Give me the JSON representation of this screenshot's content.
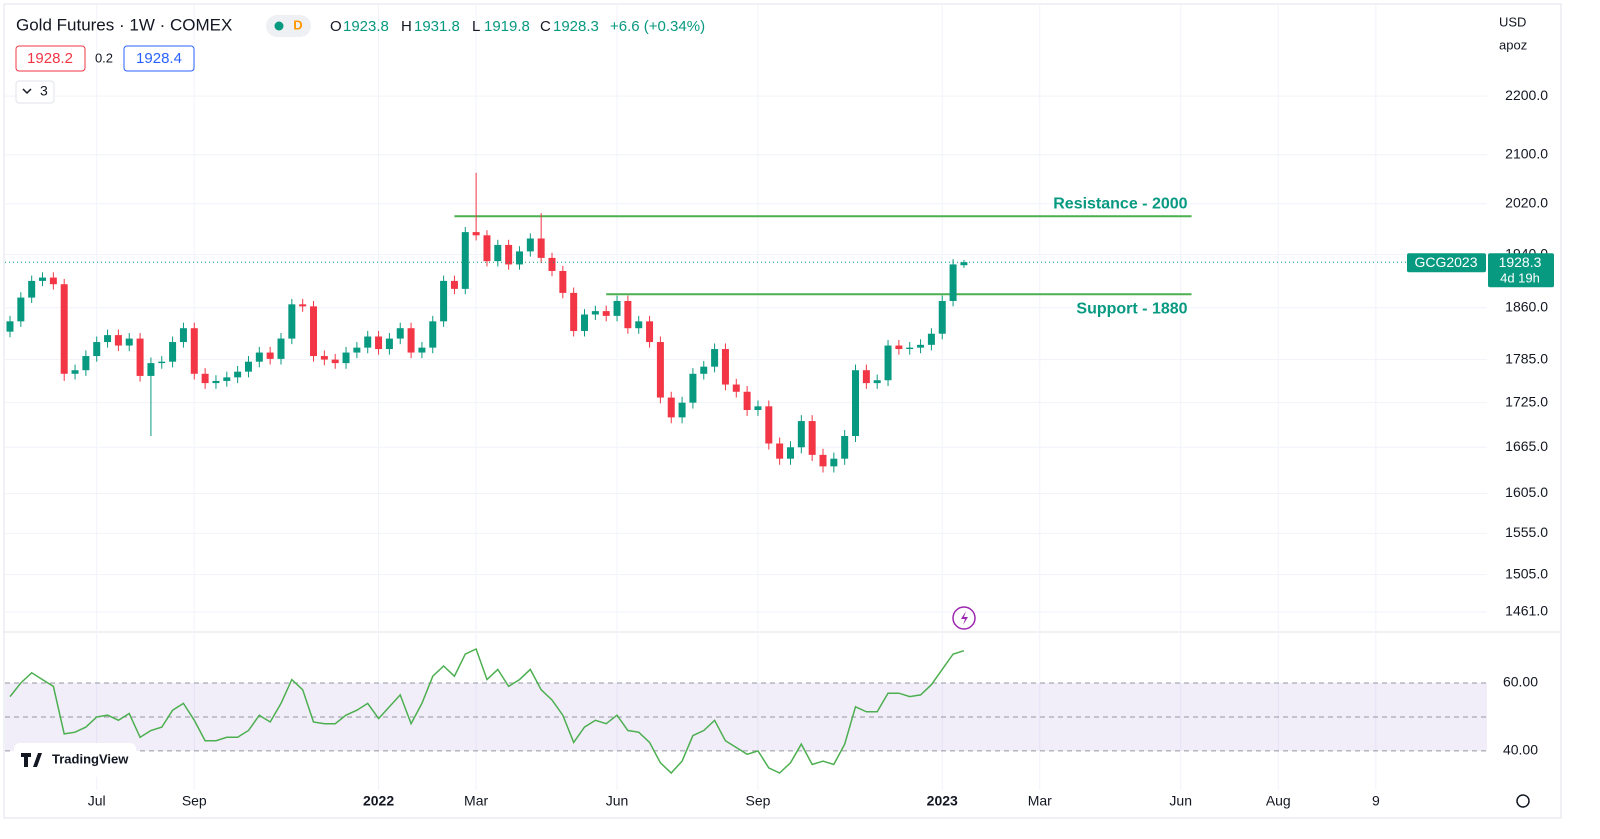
{
  "header": {
    "title": "Gold Futures · 1W · COMEX",
    "badge": "D",
    "open_label": "O",
    "high_label": "H",
    "low_label": "L",
    "close_label": "C",
    "change": "+6.6 (+0.34%)",
    "bid": "1928.2",
    "spread": "0.2",
    "ask": "1928.4",
    "collapse_count": "3",
    "currency": "USD",
    "unit": "apoz",
    "logo": "TradingView"
  },
  "chart_data": [
    {
      "type": "candlestick",
      "symbol": "GCG2023",
      "countdown": "4d 19h",
      "categories": [
        null,
        null,
        null,
        null,
        null,
        null,
        null,
        null,
        "Jul",
        null,
        null,
        null,
        null,
        null,
        null,
        null,
        null,
        "Sep",
        null,
        null,
        null,
        null,
        null,
        null,
        null,
        null,
        null,
        null,
        null,
        null,
        null,
        null,
        null,
        null,
        "2022",
        null,
        null,
        null,
        null,
        null,
        null,
        null,
        null,
        "Mar",
        null,
        null,
        null,
        null,
        null,
        null,
        null,
        null,
        null,
        null,
        null,
        null,
        "Jun",
        null,
        null,
        null,
        null,
        null,
        null,
        null,
        null,
        null,
        null,
        null,
        null,
        "Sep",
        null,
        null,
        null,
        null,
        null,
        null,
        null,
        null,
        null,
        null,
        null,
        null,
        null,
        null,
        null,
        null,
        "2023",
        null,
        null,
        null,
        null,
        null,
        null,
        null,
        null,
        "Mar",
        null,
        null,
        null,
        null,
        null,
        null,
        null,
        null,
        null,
        null,
        null,
        null,
        "Jun",
        null,
        null,
        null,
        null,
        null,
        null,
        null,
        null,
        "Aug",
        null,
        null,
        null,
        null,
        null,
        null,
        null,
        null,
        "9",
        null,
        null,
        null,
        null,
        null,
        null,
        null,
        null,
        null,
        null
      ],
      "open": [
        1825,
        1840,
        1875,
        1900,
        1905,
        1895,
        1765,
        1770,
        1790,
        1810,
        1820,
        1805,
        1815,
        1762,
        1780,
        1782,
        1810,
        1830,
        1765,
        1752,
        1755,
        1760,
        1768,
        1782,
        1795,
        1786,
        1815,
        1865,
        1862,
        1790,
        1785,
        1780,
        1795,
        1802,
        1818,
        1800,
        1815,
        1830,
        1795,
        1802,
        1840,
        1900,
        1888,
        1975,
        1970,
        1930,
        1955,
        1925,
        1945,
        1965,
        1935,
        1915,
        1882,
        1826,
        1850,
        1855,
        1848,
        1870,
        1830,
        1840,
        1810,
        1732,
        1705,
        1725,
        1765,
        1775,
        1800,
        1750,
        1740,
        1715,
        1720,
        1670,
        1650,
        1665,
        1700,
        1655,
        1640,
        1650,
        1680,
        1770,
        1752,
        1756,
        1805,
        1800,
        1802,
        1806,
        1822,
        1870,
        1923.8,
        null,
        null,
        null,
        null,
        null,
        null,
        null,
        null,
        null,
        null,
        null,
        null,
        null,
        null,
        null,
        null,
        null,
        null,
        null,
        null,
        null,
        null,
        null,
        null,
        null,
        null,
        null,
        null,
        null,
        null,
        null,
        null,
        null,
        null,
        null,
        null,
        null,
        null,
        null,
        null,
        null,
        null,
        null,
        null,
        null,
        null,
        null,
        null
      ],
      "high": [
        1848,
        1883,
        1908,
        1913,
        1913,
        1903,
        1778,
        1798,
        1818,
        1828,
        1828,
        1823,
        1823,
        1788,
        1790,
        1818,
        1838,
        1838,
        1773,
        1763,
        1768,
        1776,
        1790,
        1803,
        1803,
        1823,
        1873,
        1873,
        1870,
        1798,
        1793,
        1803,
        1810,
        1826,
        1826,
        1823,
        1838,
        1838,
        1810,
        1848,
        1908,
        1908,
        1983,
        2070,
        1978,
        1963,
        1963,
        1953,
        1973,
        2005,
        1943,
        1923,
        1890,
        1858,
        1863,
        1863,
        1878,
        1878,
        1848,
        1848,
        1818,
        1740,
        1733,
        1773,
        1783,
        1808,
        1808,
        1758,
        1748,
        1728,
        1728,
        1678,
        1673,
        1708,
        1708,
        1663,
        1658,
        1688,
        1778,
        1778,
        1764,
        1813,
        1813,
        1810,
        1814,
        1830,
        1878,
        1933,
        1931.8,
        null,
        null,
        null,
        null,
        null,
        null,
        null,
        null,
        null,
        null,
        null,
        null,
        null,
        null,
        null,
        null,
        null,
        null,
        null,
        null,
        null,
        null,
        null,
        null,
        null,
        null,
        null,
        null,
        null,
        null,
        null,
        null,
        null,
        null,
        null,
        null,
        null,
        null,
        null,
        null,
        null,
        null,
        null,
        null,
        null,
        null,
        null,
        null
      ],
      "low": [
        1817,
        1832,
        1867,
        1892,
        1887,
        1755,
        1757,
        1762,
        1782,
        1802,
        1797,
        1797,
        1754,
        1680,
        1772,
        1774,
        1802,
        1757,
        1744,
        1744,
        1747,
        1752,
        1760,
        1774,
        1778,
        1778,
        1807,
        1854,
        1782,
        1777,
        1772,
        1772,
        1787,
        1794,
        1792,
        1792,
        1807,
        1787,
        1787,
        1794,
        1832,
        1880,
        1880,
        1962,
        1922,
        1922,
        1917,
        1917,
        1937,
        1927,
        1907,
        1874,
        1818,
        1818,
        1842,
        1840,
        1840,
        1822,
        1822,
        1802,
        1724,
        1697,
        1697,
        1717,
        1757,
        1767,
        1742,
        1732,
        1707,
        1707,
        1662,
        1642,
        1642,
        1657,
        1647,
        1632,
        1632,
        1642,
        1672,
        1744,
        1744,
        1748,
        1792,
        1792,
        1794,
        1798,
        1814,
        1862,
        1919.8,
        null,
        null,
        null,
        null,
        null,
        null,
        null,
        null,
        null,
        null,
        null,
        null,
        null,
        null,
        null,
        null,
        null,
        null,
        null,
        null,
        null,
        null,
        null,
        null,
        null,
        null,
        null,
        null,
        null,
        null,
        null,
        null,
        null,
        null,
        null,
        null,
        null,
        null,
        null,
        null,
        null,
        null,
        null,
        null,
        null,
        null,
        null,
        null
      ],
      "close": [
        1840,
        1875,
        1900,
        1905,
        1895,
        1765,
        1770,
        1790,
        1810,
        1820,
        1805,
        1815,
        1762,
        1780,
        1782,
        1810,
        1830,
        1765,
        1752,
        1755,
        1760,
        1768,
        1782,
        1795,
        1786,
        1815,
        1865,
        1862,
        1790,
        1785,
        1780,
        1795,
        1802,
        1818,
        1800,
        1815,
        1830,
        1795,
        1802,
        1840,
        1900,
        1888,
        1975,
        1970,
        1930,
        1955,
        1925,
        1945,
        1965,
        1935,
        1915,
        1882,
        1826,
        1850,
        1855,
        1848,
        1870,
        1830,
        1840,
        1810,
        1732,
        1705,
        1725,
        1765,
        1775,
        1800,
        1750,
        1740,
        1715,
        1720,
        1670,
        1650,
        1665,
        1700,
        1655,
        1640,
        1650,
        1680,
        1770,
        1752,
        1756,
        1805,
        1800,
        1802,
        1806,
        1822,
        1870,
        1925,
        1928.3,
        null,
        null,
        null,
        null,
        null,
        null,
        null,
        null,
        null,
        null,
        null,
        null,
        null,
        null,
        null,
        null,
        null,
        null,
        null,
        null,
        null,
        null,
        null,
        null,
        null,
        null,
        null,
        null,
        null,
        null,
        null,
        null,
        null,
        null,
        null,
        null,
        null,
        null,
        null,
        null,
        null,
        null,
        null,
        null,
        null,
        null,
        null,
        null
      ],
      "up_color": "#089981",
      "down_color": "#f23645",
      "log_scale": true,
      "ylim": [
        1438,
        2365
      ],
      "yticks": [
        {
          "value": 2200,
          "label": "2200.0"
        },
        {
          "value": 2100,
          "label": "2100.0"
        },
        {
          "value": 2020,
          "label": "2020.0"
        },
        {
          "value": 1940,
          "label": "1940.0"
        },
        {
          "value": 1860,
          "label": "1860.0"
        },
        {
          "value": 1785,
          "label": "1785.0"
        },
        {
          "value": 1725,
          "label": "1725.0"
        },
        {
          "value": 1665,
          "label": "1665.0"
        },
        {
          "value": 1605,
          "label": "1605.0"
        },
        {
          "value": 1555,
          "label": "1555.0"
        },
        {
          "value": 1505,
          "label": "1505.0"
        },
        {
          "value": 1461,
          "label": "1461.0"
        }
      ],
      "grid": true,
      "annotations": [
        {
          "text": "Resistance - 2000",
          "value": 2000,
          "from": 41,
          "to": 109,
          "label_side": "above",
          "color": "#4caf50"
        },
        {
          "text": "Support - 1880",
          "value": 1880,
          "from": 55,
          "to": 109,
          "label_side": "below",
          "color": "#4caf50"
        }
      ]
    },
    {
      "type": "line",
      "color": "#4caf50",
      "values": [
        56,
        60,
        63,
        61,
        59,
        45,
        45.5,
        47,
        50,
        50.5,
        49,
        51,
        44,
        46,
        47,
        52,
        54,
        49,
        43,
        43,
        44,
        44,
        46,
        50.5,
        48.5,
        54,
        61,
        58,
        48.5,
        48,
        48,
        50.5,
        52,
        54,
        49.5,
        53,
        56.5,
        48,
        54,
        62,
        65,
        62,
        68.5,
        70,
        61,
        64,
        59,
        61,
        64,
        58,
        55,
        50.5,
        42.5,
        47,
        49,
        48,
        50.5,
        46,
        45.5,
        42.5,
        36.5,
        33.5,
        37,
        44.5,
        46,
        49,
        43,
        41,
        39,
        40,
        35,
        33.5,
        36.5,
        42,
        36,
        37,
        36,
        42,
        53,
        51.5,
        51.5,
        57,
        57,
        56,
        56.5,
        59.5,
        64,
        68.5,
        69.5,
        null,
        null,
        null,
        null,
        null,
        null,
        null,
        null,
        null,
        null,
        null,
        null,
        null,
        null,
        null,
        null,
        null,
        null,
        null,
        null,
        null,
        null,
        null,
        null,
        null,
        null,
        null,
        null,
        null,
        null,
        null,
        null,
        null,
        null,
        null,
        null,
        null,
        null,
        null,
        null,
        null,
        null,
        null,
        null,
        null,
        null,
        null,
        null
      ],
      "ylim": [
        28.5,
        75
      ],
      "yticks": [
        {
          "value": 60,
          "label": "60.00"
        },
        {
          "value": 40,
          "label": "40.00"
        }
      ],
      "band": [
        40,
        60
      ],
      "band_color": "#7e57c2",
      "midline": 50
    }
  ]
}
